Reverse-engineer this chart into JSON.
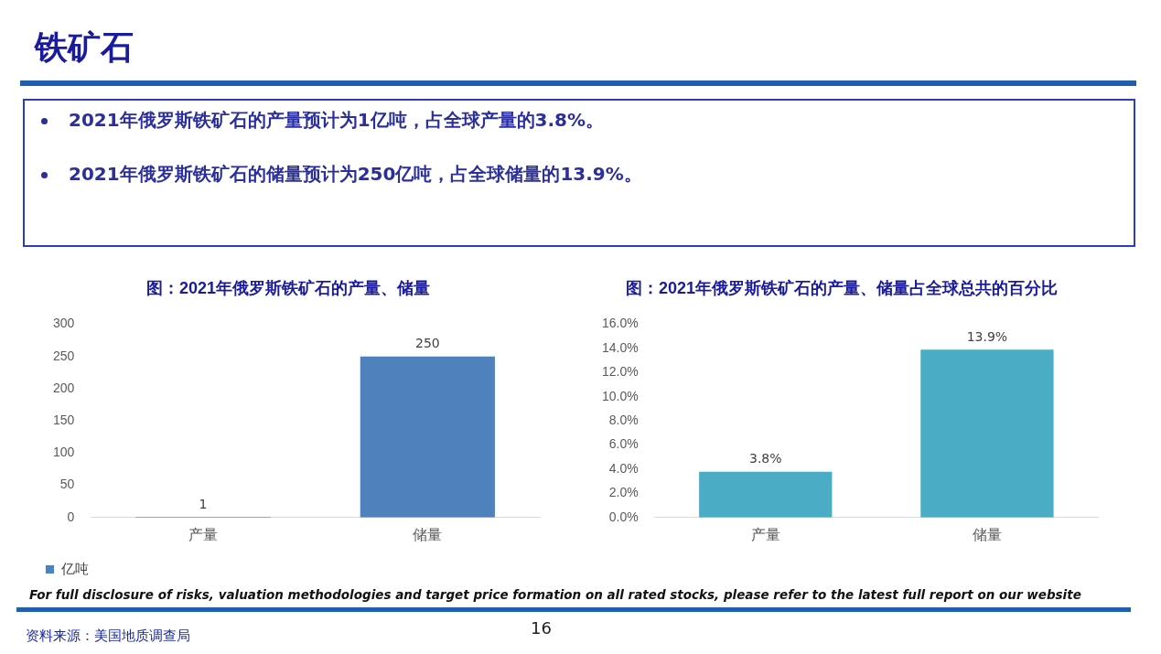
{
  "chart_data": [
    {
      "type": "other",
      "title": "铁矿石",
      "annotations": [
        "2021年俄罗斯铁矿石的产量预计为1亿吨，占全球产量的3.8%。",
        "2021年俄罗斯铁矿石的储量预计为250亿吨，占全球储量的13.9%。",
        "For full disclosure of risks, valuation methodologies and target price formation on all rated stocks, please refer to the latest full report on our website",
        "资料来源：美国地质调查局",
        "16"
      ]
    },
    {
      "type": "bar",
      "title": "图：2021年俄罗斯铁矿石的产量、储量",
      "categories": [
        "产量",
        "储量"
      ],
      "series": [
        {
          "name": "亿吨",
          "color": "#4f81bd",
          "values": [
            1,
            250
          ]
        }
      ],
      "ylim": [
        0,
        300
      ],
      "yticks": [
        0,
        50,
        100,
        150,
        200,
        250,
        300
      ],
      "data_labels": true,
      "legend": "bottom left"
    },
    {
      "type": "bar",
      "title": "图：2021年俄罗斯铁矿石的产量、储量占全球总共的百分比",
      "categories": [
        "产量",
        "储量"
      ],
      "series": [
        {
          "color": "#4bacc6",
          "values": [
            3.8,
            13.9
          ],
          "value_labels": [
            "3.8%",
            "13.9%"
          ]
        }
      ],
      "ylim": [
        0,
        16
      ],
      "yticks": [
        {
          "value": 0,
          "label": "0.0%"
        },
        {
          "value": 2,
          "label": "2.0%"
        },
        {
          "value": 4,
          "label": "4.0%"
        },
        {
          "value": 6,
          "label": "6.0%"
        },
        {
          "value": 8,
          "label": "8.0%"
        },
        {
          "value": 10,
          "label": "10.0%"
        },
        {
          "value": 12,
          "label": "12.0%"
        },
        {
          "value": 14,
          "label": "14.0%"
        },
        {
          "value": 16,
          "label": "16.0%"
        }
      ]
    }
  ]
}
